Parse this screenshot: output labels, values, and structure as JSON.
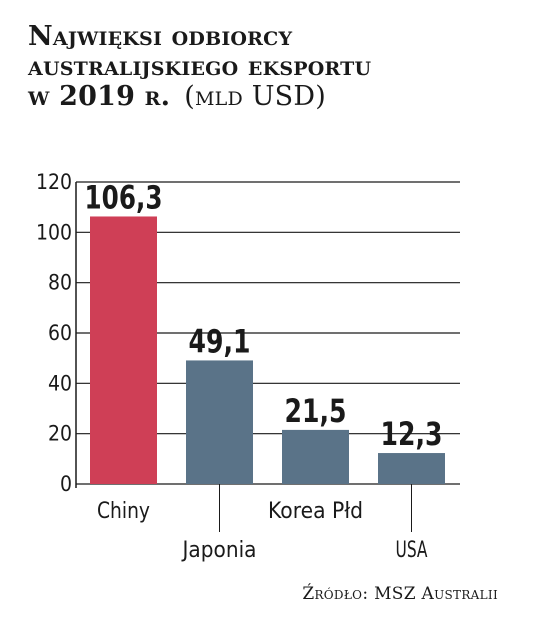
{
  "title": {
    "line1": "Najwięksi odbiorcy",
    "line2": "australijskiego eksportu",
    "line3": "w 2019 r.",
    "unit": "(mld USD)"
  },
  "source": {
    "label": "Źródło:",
    "text": "MSZ Australii"
  },
  "colors": {
    "highlight": "#cf3f56",
    "bar": "#5a7388",
    "axis": "#1a1a1a"
  },
  "chart_data": {
    "type": "bar",
    "categories": [
      "Chiny",
      "Japonia",
      "Korea Płd",
      "USA"
    ],
    "values": [
      106.3,
      49.1,
      21.5,
      12.3
    ],
    "value_labels": [
      "106,3",
      "49,1",
      "21,5",
      "12,3"
    ],
    "highlight_index": 0,
    "yticks": [
      0,
      20,
      40,
      60,
      80,
      100,
      120
    ],
    "ylim": [
      0,
      120
    ],
    "grid": true,
    "title": "Najwięksi odbiorcy australijskiego eksportu w 2019 r. (mld USD)",
    "xlabel": "",
    "ylabel": ""
  }
}
